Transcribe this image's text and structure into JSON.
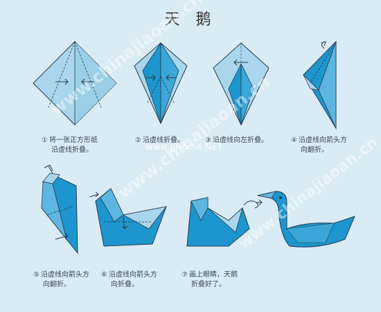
{
  "title": "天 鹅",
  "steps": [
    {
      "num": "①",
      "line1": "将一张正方形纸",
      "line2": "沿虚线折叠。"
    },
    {
      "num": "②",
      "line1": "沿虚线折叠。",
      "line2": ""
    },
    {
      "num": "③",
      "line1": "沿虚线向左折叠。",
      "line2": ""
    },
    {
      "num": "④",
      "line1": "沿虚线向箭头方",
      "line2": "向翻折。"
    },
    {
      "num": "⑤",
      "line1": "沿虚线向箭头方",
      "line2": "向翻折。"
    },
    {
      "num": "⑥",
      "line1": "沿虚线向箭头方",
      "line2": "向折叠。"
    },
    {
      "num": "⑦",
      "line1": "画上眼睛，天鹅",
      "line2": "折叠好了。"
    }
  ],
  "watermarks": {
    "site1": "www.chinajiaoan.cn",
    "site2": "www.pHome.NET"
  },
  "colors": {
    "paper_light": "#a9d6ec",
    "paper_mid": "#5cb6df",
    "paper_dark": "#1d96cf",
    "line": "#2a3a48"
  }
}
